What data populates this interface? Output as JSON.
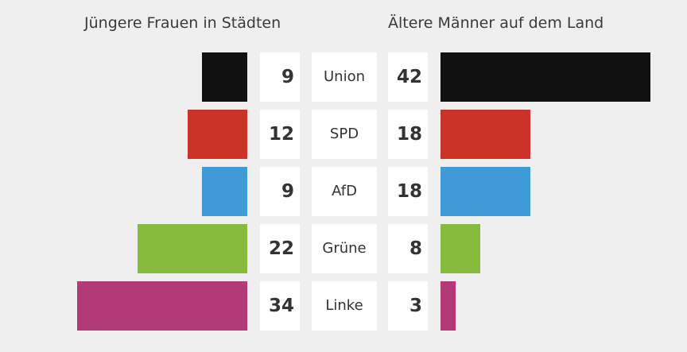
{
  "chart_data": {
    "type": "bar",
    "left_title": "Jüngere Frauen in Städten",
    "right_title": "Ältere Männer auf dem Land",
    "categories": [
      "Union",
      "SPD",
      "AfD",
      "Grüne",
      "Linke"
    ],
    "colors": [
      "#111111",
      "#cc3328",
      "#3f9ad8",
      "#86bb3e",
      "#b23a77"
    ],
    "series": [
      {
        "name": "Jüngere Frauen in Städten",
        "values": [
          9,
          12,
          9,
          22,
          34
        ]
      },
      {
        "name": "Ältere Männer auf dem Land",
        "values": [
          42,
          18,
          18,
          8,
          3
        ]
      }
    ]
  }
}
